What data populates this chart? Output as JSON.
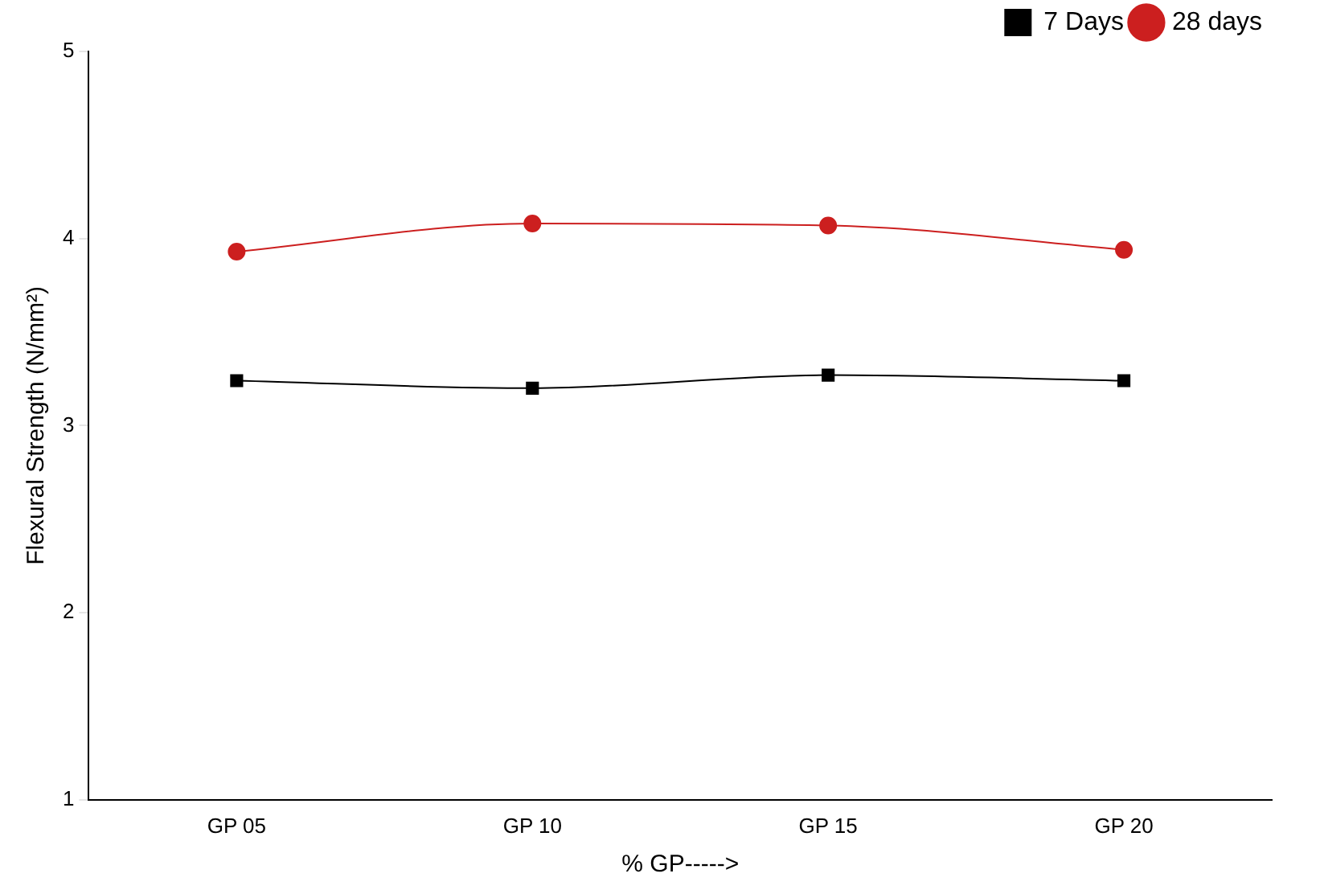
{
  "chart_data": {
    "type": "line",
    "xlabel": "% GP----->",
    "ylabel": "Flexural Strength (N/mm²)",
    "categories": [
      "GP 05",
      "GP 10",
      "GP 15",
      "GP 20"
    ],
    "series": [
      {
        "name": "7 Days",
        "color": "#000000",
        "marker": "square",
        "values": [
          3.24,
          3.2,
          3.27,
          3.24
        ]
      },
      {
        "name": "28 days",
        "color": "#cc1f1f",
        "marker": "circle",
        "values": [
          3.93,
          4.08,
          4.07,
          3.94
        ]
      }
    ],
    "ylim": [
      1,
      5
    ],
    "yticks": [
      1,
      2,
      3,
      4,
      5
    ],
    "grid": false,
    "legend": "top right",
    "line_style": "solid"
  }
}
